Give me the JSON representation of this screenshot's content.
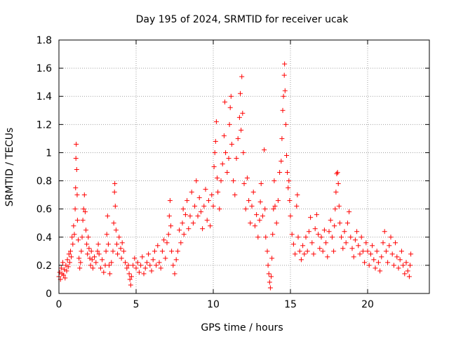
{
  "chart_data": {
    "type": "scatter",
    "title": "Day 195 of 2024, SRMTID for receiver ucak",
    "xlabel": "GPS time / hours",
    "ylabel": "SRMTID / TECUs",
    "xlim": [
      0,
      24
    ],
    "ylim": [
      0,
      1.8
    ],
    "x_ticks": [
      0,
      5,
      10,
      15,
      20
    ],
    "x_tick_labels": [
      "0",
      "5",
      "10",
      "15",
      "20"
    ],
    "y_ticks": [
      0,
      0.2,
      0.4,
      0.6,
      0.8,
      1.0,
      1.2,
      1.4,
      1.6,
      1.8
    ],
    "y_tick_labels": [
      "0",
      "0.2",
      "0.4",
      "0.6",
      "0.8",
      "1",
      "1.2",
      "1.4",
      "1.6",
      "1.8"
    ],
    "grid": true,
    "marker": "+",
    "color": "#ff0000",
    "series": [
      {
        "name": "SRMTID",
        "points": [
          [
            0.0,
            0.12
          ],
          [
            0.05,
            0.15
          ],
          [
            0.1,
            0.1
          ],
          [
            0.15,
            0.18
          ],
          [
            0.2,
            0.14
          ],
          [
            0.25,
            0.22
          ],
          [
            0.3,
            0.13
          ],
          [
            0.35,
            0.17
          ],
          [
            0.4,
            0.11
          ],
          [
            0.45,
            0.2
          ],
          [
            0.5,
            0.16
          ],
          [
            0.55,
            0.24
          ],
          [
            0.6,
            0.19
          ],
          [
            0.65,
            0.28
          ],
          [
            0.7,
            0.22
          ],
          [
            0.75,
            0.3
          ],
          [
            0.8,
            0.26
          ],
          [
            0.85,
            0.4
          ],
          [
            0.9,
            0.35
          ],
          [
            0.95,
            0.48
          ],
          [
            1.0,
            0.42
          ],
          [
            1.05,
            0.6
          ],
          [
            1.08,
            0.75
          ],
          [
            1.1,
            0.96
          ],
          [
            1.12,
            1.06
          ],
          [
            1.15,
            0.88
          ],
          [
            1.18,
            0.7
          ],
          [
            1.2,
            0.52
          ],
          [
            1.25,
            0.38
          ],
          [
            1.3,
            0.25
          ],
          [
            1.35,
            0.18
          ],
          [
            1.4,
            0.22
          ],
          [
            1.45,
            0.3
          ],
          [
            1.5,
            0.4
          ],
          [
            1.55,
            0.52
          ],
          [
            1.6,
            0.6
          ],
          [
            1.65,
            0.7
          ],
          [
            1.7,
            0.58
          ],
          [
            1.75,
            0.45
          ],
          [
            1.8,
            0.35
          ],
          [
            1.85,
            0.28
          ],
          [
            1.9,
            0.4
          ],
          [
            1.95,
            0.32
          ],
          [
            2.0,
            0.25
          ],
          [
            2.05,
            0.2
          ],
          [
            2.1,
            0.3
          ],
          [
            2.15,
            0.24
          ],
          [
            2.2,
            0.18
          ],
          [
            2.3,
            0.26
          ],
          [
            2.4,
            0.22
          ],
          [
            2.5,
            0.3
          ],
          [
            2.55,
            0.35
          ],
          [
            2.6,
            0.28
          ],
          [
            2.7,
            0.18
          ],
          [
            2.8,
            0.24
          ],
          [
            2.9,
            0.15
          ],
          [
            3.0,
            0.2
          ],
          [
            3.05,
            0.3
          ],
          [
            3.1,
            0.42
          ],
          [
            3.15,
            0.55
          ],
          [
            3.2,
            0.35
          ],
          [
            3.25,
            0.2
          ],
          [
            3.3,
            0.14
          ],
          [
            3.4,
            0.22
          ],
          [
            3.5,
            0.3
          ],
          [
            3.55,
            0.5
          ],
          [
            3.6,
            0.72
          ],
          [
            3.62,
            0.78
          ],
          [
            3.65,
            0.62
          ],
          [
            3.7,
            0.45
          ],
          [
            3.75,
            0.35
          ],
          [
            3.8,
            0.28
          ],
          [
            3.9,
            0.4
          ],
          [
            4.0,
            0.32
          ],
          [
            4.05,
            0.25
          ],
          [
            4.1,
            0.36
          ],
          [
            4.2,
            0.3
          ],
          [
            4.3,
            0.22
          ],
          [
            4.4,
            0.18
          ],
          [
            4.5,
            0.2
          ],
          [
            4.55,
            0.14
          ],
          [
            4.6,
            0.1
          ],
          [
            4.65,
            0.06
          ],
          [
            4.7,
            0.12
          ],
          [
            4.8,
            0.2
          ],
          [
            4.9,
            0.25
          ],
          [
            5.0,
            0.18
          ],
          [
            5.1,
            0.22
          ],
          [
            5.2,
            0.15
          ],
          [
            5.3,
            0.2
          ],
          [
            5.4,
            0.26
          ],
          [
            5.5,
            0.14
          ],
          [
            5.6,
            0.18
          ],
          [
            5.7,
            0.22
          ],
          [
            5.8,
            0.28
          ],
          [
            5.9,
            0.2
          ],
          [
            6.0,
            0.16
          ],
          [
            6.1,
            0.24
          ],
          [
            6.2,
            0.3
          ],
          [
            6.3,
            0.2
          ],
          [
            6.4,
            0.34
          ],
          [
            6.5,
            0.22
          ],
          [
            6.6,
            0.18
          ],
          [
            6.7,
            0.3
          ],
          [
            6.8,
            0.38
          ],
          [
            6.9,
            0.25
          ],
          [
            7.0,
            0.36
          ],
          [
            7.1,
            0.42
          ],
          [
            7.15,
            0.55
          ],
          [
            7.2,
            0.66
          ],
          [
            7.25,
            0.48
          ],
          [
            7.3,
            0.3
          ],
          [
            7.4,
            0.2
          ],
          [
            7.5,
            0.14
          ],
          [
            7.6,
            0.24
          ],
          [
            7.7,
            0.3
          ],
          [
            7.8,
            0.45
          ],
          [
            7.9,
            0.36
          ],
          [
            8.0,
            0.5
          ],
          [
            8.05,
            0.6
          ],
          [
            8.1,
            0.42
          ],
          [
            8.2,
            0.56
          ],
          [
            8.3,
            0.66
          ],
          [
            8.4,
            0.46
          ],
          [
            8.5,
            0.55
          ],
          [
            8.6,
            0.72
          ],
          [
            8.7,
            0.5
          ],
          [
            8.8,
            0.62
          ],
          [
            8.9,
            0.8
          ],
          [
            9.0,
            0.55
          ],
          [
            9.1,
            0.68
          ],
          [
            9.2,
            0.58
          ],
          [
            9.3,
            0.46
          ],
          [
            9.4,
            0.62
          ],
          [
            9.5,
            0.74
          ],
          [
            9.6,
            0.52
          ],
          [
            9.7,
            0.66
          ],
          [
            9.8,
            0.48
          ],
          [
            9.9,
            0.7
          ],
          [
            10.0,
            0.62
          ],
          [
            10.05,
            0.9
          ],
          [
            10.1,
            1.0
          ],
          [
            10.15,
            1.08
          ],
          [
            10.2,
            1.22
          ],
          [
            10.25,
            0.82
          ],
          [
            10.3,
            0.72
          ],
          [
            10.4,
            0.6
          ],
          [
            10.5,
            0.8
          ],
          [
            10.6,
            0.92
          ],
          [
            10.7,
            1.12
          ],
          [
            10.75,
            1.36
          ],
          [
            10.8,
            1.0
          ],
          [
            10.9,
            0.86
          ],
          [
            11.0,
            0.96
          ],
          [
            11.05,
            1.2
          ],
          [
            11.1,
            1.32
          ],
          [
            11.15,
            1.4
          ],
          [
            11.2,
            1.06
          ],
          [
            11.3,
            0.8
          ],
          [
            11.4,
            0.7
          ],
          [
            11.5,
            0.96
          ],
          [
            11.6,
            1.1
          ],
          [
            11.7,
            1.25
          ],
          [
            11.75,
            1.42
          ],
          [
            11.8,
            1.16
          ],
          [
            11.85,
            1.54
          ],
          [
            11.9,
            1.28
          ],
          [
            11.95,
            1.0
          ],
          [
            12.0,
            0.78
          ],
          [
            12.1,
            0.6
          ],
          [
            12.2,
            0.82
          ],
          [
            12.3,
            0.66
          ],
          [
            12.4,
            0.5
          ],
          [
            12.5,
            0.62
          ],
          [
            12.6,
            0.72
          ],
          [
            12.7,
            0.48
          ],
          [
            12.8,
            0.56
          ],
          [
            12.9,
            0.4
          ],
          [
            13.0,
            0.52
          ],
          [
            13.05,
            0.65
          ],
          [
            13.1,
            0.78
          ],
          [
            13.2,
            0.55
          ],
          [
            13.3,
            1.02
          ],
          [
            13.35,
            0.6
          ],
          [
            13.4,
            0.4
          ],
          [
            13.5,
            0.3
          ],
          [
            13.55,
            0.2
          ],
          [
            13.6,
            0.14
          ],
          [
            13.65,
            0.08
          ],
          [
            13.7,
            0.04
          ],
          [
            13.75,
            0.12
          ],
          [
            13.8,
            0.25
          ],
          [
            13.85,
            0.42
          ],
          [
            13.9,
            0.6
          ],
          [
            13.95,
            0.8
          ],
          [
            14.0,
            0.62
          ],
          [
            14.1,
            0.5
          ],
          [
            14.2,
            0.66
          ],
          [
            14.3,
            0.86
          ],
          [
            14.4,
            0.94
          ],
          [
            14.45,
            1.1
          ],
          [
            14.5,
            1.3
          ],
          [
            14.55,
            1.4
          ],
          [
            14.6,
            1.55
          ],
          [
            14.62,
            1.63
          ],
          [
            14.65,
            1.44
          ],
          [
            14.7,
            1.2
          ],
          [
            14.75,
            0.98
          ],
          [
            14.8,
            0.86
          ],
          [
            14.85,
            0.75
          ],
          [
            14.9,
            0.8
          ],
          [
            14.95,
            0.66
          ],
          [
            15.0,
            0.55
          ],
          [
            15.1,
            0.42
          ],
          [
            15.2,
            0.35
          ],
          [
            15.3,
            0.28
          ],
          [
            15.4,
            0.62
          ],
          [
            15.45,
            0.7
          ],
          [
            15.5,
            0.4
          ],
          [
            15.6,
            0.3
          ],
          [
            15.7,
            0.24
          ],
          [
            15.8,
            0.34
          ],
          [
            15.9,
            0.28
          ],
          [
            16.0,
            0.4
          ],
          [
            16.1,
            0.3
          ],
          [
            16.2,
            0.44
          ],
          [
            16.3,
            0.54
          ],
          [
            16.4,
            0.36
          ],
          [
            16.5,
            0.28
          ],
          [
            16.6,
            0.46
          ],
          [
            16.7,
            0.56
          ],
          [
            16.8,
            0.42
          ],
          [
            16.9,
            0.32
          ],
          [
            17.0,
            0.4
          ],
          [
            17.1,
            0.3
          ],
          [
            17.2,
            0.45
          ],
          [
            17.3,
            0.36
          ],
          [
            17.4,
            0.26
          ],
          [
            17.5,
            0.44
          ],
          [
            17.6,
            0.52
          ],
          [
            17.7,
            0.4
          ],
          [
            17.8,
            0.3
          ],
          [
            17.85,
            0.48
          ],
          [
            17.9,
            0.6
          ],
          [
            17.95,
            0.72
          ],
          [
            18.0,
            0.85
          ],
          [
            18.05,
            0.86
          ],
          [
            18.1,
            0.78
          ],
          [
            18.15,
            0.62
          ],
          [
            18.2,
            0.5
          ],
          [
            18.3,
            0.4
          ],
          [
            18.4,
            0.32
          ],
          [
            18.5,
            0.44
          ],
          [
            18.6,
            0.36
          ],
          [
            18.7,
            0.5
          ],
          [
            18.8,
            0.58
          ],
          [
            18.9,
            0.4
          ],
          [
            19.0,
            0.32
          ],
          [
            19.1,
            0.26
          ],
          [
            19.2,
            0.38
          ],
          [
            19.3,
            0.44
          ],
          [
            19.4,
            0.34
          ],
          [
            19.5,
            0.28
          ],
          [
            19.6,
            0.4
          ],
          [
            19.7,
            0.3
          ],
          [
            19.8,
            0.22
          ],
          [
            19.9,
            0.36
          ],
          [
            20.0,
            0.3
          ],
          [
            20.1,
            0.2
          ],
          [
            20.2,
            0.28
          ],
          [
            20.3,
            0.34
          ],
          [
            20.4,
            0.24
          ],
          [
            20.5,
            0.18
          ],
          [
            20.6,
            0.3
          ],
          [
            20.7,
            0.22
          ],
          [
            20.8,
            0.16
          ],
          [
            20.9,
            0.26
          ],
          [
            21.0,
            0.36
          ],
          [
            21.1,
            0.44
          ],
          [
            21.2,
            0.3
          ],
          [
            21.3,
            0.22
          ],
          [
            21.4,
            0.34
          ],
          [
            21.5,
            0.4
          ],
          [
            21.6,
            0.28
          ],
          [
            21.7,
            0.2
          ],
          [
            21.8,
            0.36
          ],
          [
            21.9,
            0.26
          ],
          [
            22.0,
            0.18
          ],
          [
            22.1,
            0.24
          ],
          [
            22.2,
            0.3
          ],
          [
            22.3,
            0.2
          ],
          [
            22.4,
            0.14
          ],
          [
            22.5,
            0.22
          ],
          [
            22.6,
            0.16
          ],
          [
            22.7,
            0.12
          ],
          [
            22.75,
            0.2
          ],
          [
            22.8,
            0.28
          ]
        ]
      }
    ]
  }
}
